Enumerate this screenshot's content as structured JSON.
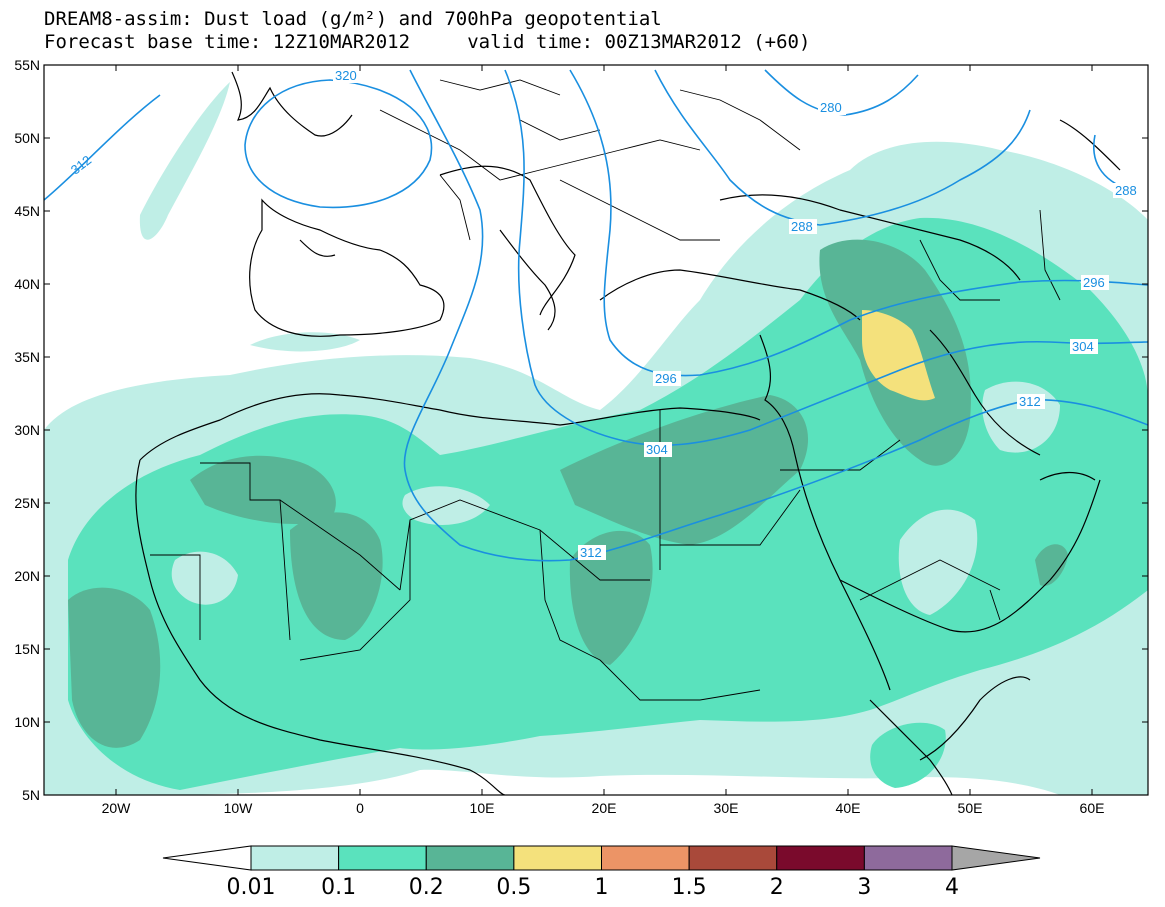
{
  "title": {
    "line1": "DREAM8-assim: Dust load (g/m²) and 700hPa geopotential",
    "line2": "Forecast base time: 12Z10MAR2012     valid time: 00Z13MAR2012 (+60)"
  },
  "map": {
    "lat_labels": [
      "55N",
      "50N",
      "45N",
      "40N",
      "35N",
      "30N",
      "25N",
      "20N",
      "15N",
      "10N",
      "5N"
    ],
    "lon_labels": [
      "20W",
      "10W",
      "0",
      "10E",
      "20E",
      "30E",
      "40E",
      "50E",
      "60E"
    ],
    "contour_labels": [
      "320",
      "312",
      "280",
      "288",
      "288",
      "296",
      "296",
      "304",
      "304",
      "312",
      "312"
    ],
    "colors": {
      "bin_0.01": "#bfeee6",
      "bin_0.1": "#5ae2bd",
      "bin_0.2": "#58b596",
      "bin_0.5": "#f4e17c",
      "bin_1": "#ec9466",
      "bin_1.5": "#a9493a",
      "bin_2": "#7a0a2c",
      "bin_3": "#8e6a9c",
      "bin_4": "#a6a6a6",
      "contour": "#1a8fe0",
      "coast": "#000000"
    }
  },
  "colorbar": {
    "labels": [
      "0.01",
      "0.1",
      "0.2",
      "0.5",
      "1",
      "1.5",
      "2",
      "3",
      "4"
    ],
    "colors": [
      "#ffffff",
      "#bfeee6",
      "#5ae2bd",
      "#58b596",
      "#f4e17c",
      "#ec9466",
      "#a9493a",
      "#7a0a2c",
      "#8e6a9c",
      "#a6a6a6"
    ]
  }
}
